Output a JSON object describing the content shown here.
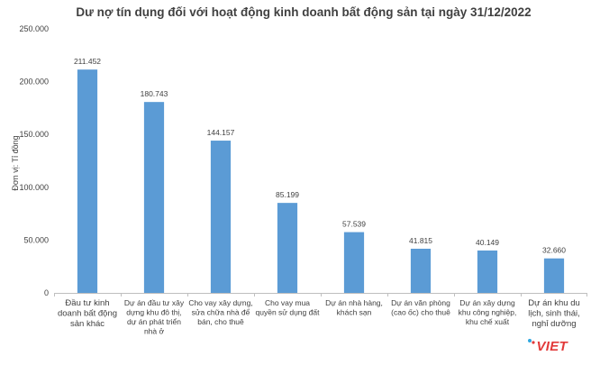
{
  "chart_data": {
    "type": "bar",
    "title": "Dư nợ tín dụng đối với hoạt động kinh doanh bất động sản tại ngày 31/12/2022",
    "ylabel": "Đơn vị: Tỉ đồng",
    "xlabel": "",
    "ylim": [
      0,
      250000
    ],
    "yticks": [
      0,
      50000,
      100000,
      150000,
      200000,
      250000
    ],
    "ytick_labels": [
      "0",
      "50.000",
      "100.000",
      "150.000",
      "200.000",
      "250.000"
    ],
    "grid": false,
    "bar_color": "#5b9bd5",
    "categories": [
      [
        "Đầu tư kinh",
        "doanh bất động",
        "sản khác"
      ],
      [
        "Dự án đầu tư xây",
        "dựng khu đô thị,",
        "dự án phát triển",
        "nhà ở"
      ],
      [
        "Cho vay xây dựng,",
        "sửa chữa nhà để",
        "bán, cho thuê"
      ],
      [
        "Cho vay mua",
        "quyền sử dụng đất"
      ],
      [
        "Dự án nhà hàng,",
        "khách sạn"
      ],
      [
        "Dự án văn phòng",
        "(cao ốc) cho thuê"
      ],
      [
        "Dự án xây dựng",
        "khu công nghiệp,",
        "khu chế xuất"
      ],
      [
        "Dự án khu du",
        "lịch, sinh thái,",
        "nghỉ dưỡng"
      ]
    ],
    "values": [
      211452,
      180743,
      144157,
      85199,
      57539,
      41815,
      40149,
      32660
    ],
    "value_labels": [
      "211.452",
      "180.743",
      "144.157",
      "85.199",
      "57.539",
      "41.815",
      "40.149",
      "32.660"
    ]
  },
  "logo": {
    "text": "VIET",
    "color": "#e23a3a"
  }
}
